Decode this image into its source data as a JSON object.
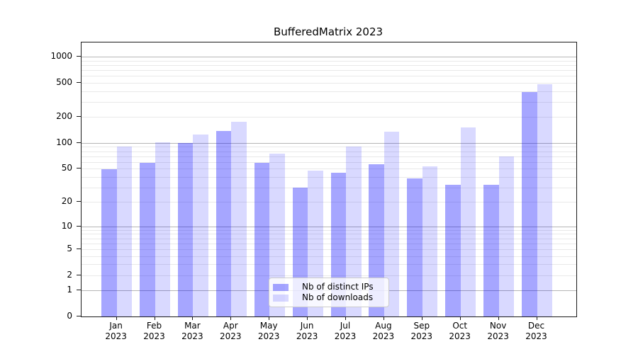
{
  "chart_data": {
    "type": "bar",
    "title": "BufferedMatrix 2023",
    "x_tick_months": [
      "Jan",
      "Feb",
      "Mar",
      "Apr",
      "May",
      "Jun",
      "Jul",
      "Aug",
      "Sep",
      "Oct",
      "Nov",
      "Dec"
    ],
    "x_tick_year": "2023",
    "series": [
      {
        "name": "Nb of distinct IPs",
        "color": "rgba(0,0,255,0.35)",
        "color_hex_on_white": "#a6a6ff",
        "values": [
          49,
          58,
          100,
          138,
          58,
          30,
          45,
          56,
          38,
          32,
          32,
          388
        ]
      },
      {
        "name": "Nb of downloads",
        "color": "rgba(0,0,255,0.15)",
        "color_hex_on_white": "#d9d9ff",
        "values": [
          90,
          101,
          125,
          177,
          75,
          47,
          91,
          135,
          53,
          150,
          69,
          478
        ]
      }
    ],
    "yscale": "log10(value+1)",
    "yticks": [
      0,
      1,
      2,
      5,
      10,
      20,
      50,
      100,
      200,
      500,
      1000
    ],
    "ylim": [
      0,
      1460
    ],
    "grid": {
      "major_at": [
        1,
        10,
        100,
        1000
      ],
      "minor_at_rule": "2-9, 20-90, 200-900",
      "major_color": "#b6b6b6",
      "minor_color": "#e9e9e9"
    },
    "legend_position": "lower center"
  }
}
